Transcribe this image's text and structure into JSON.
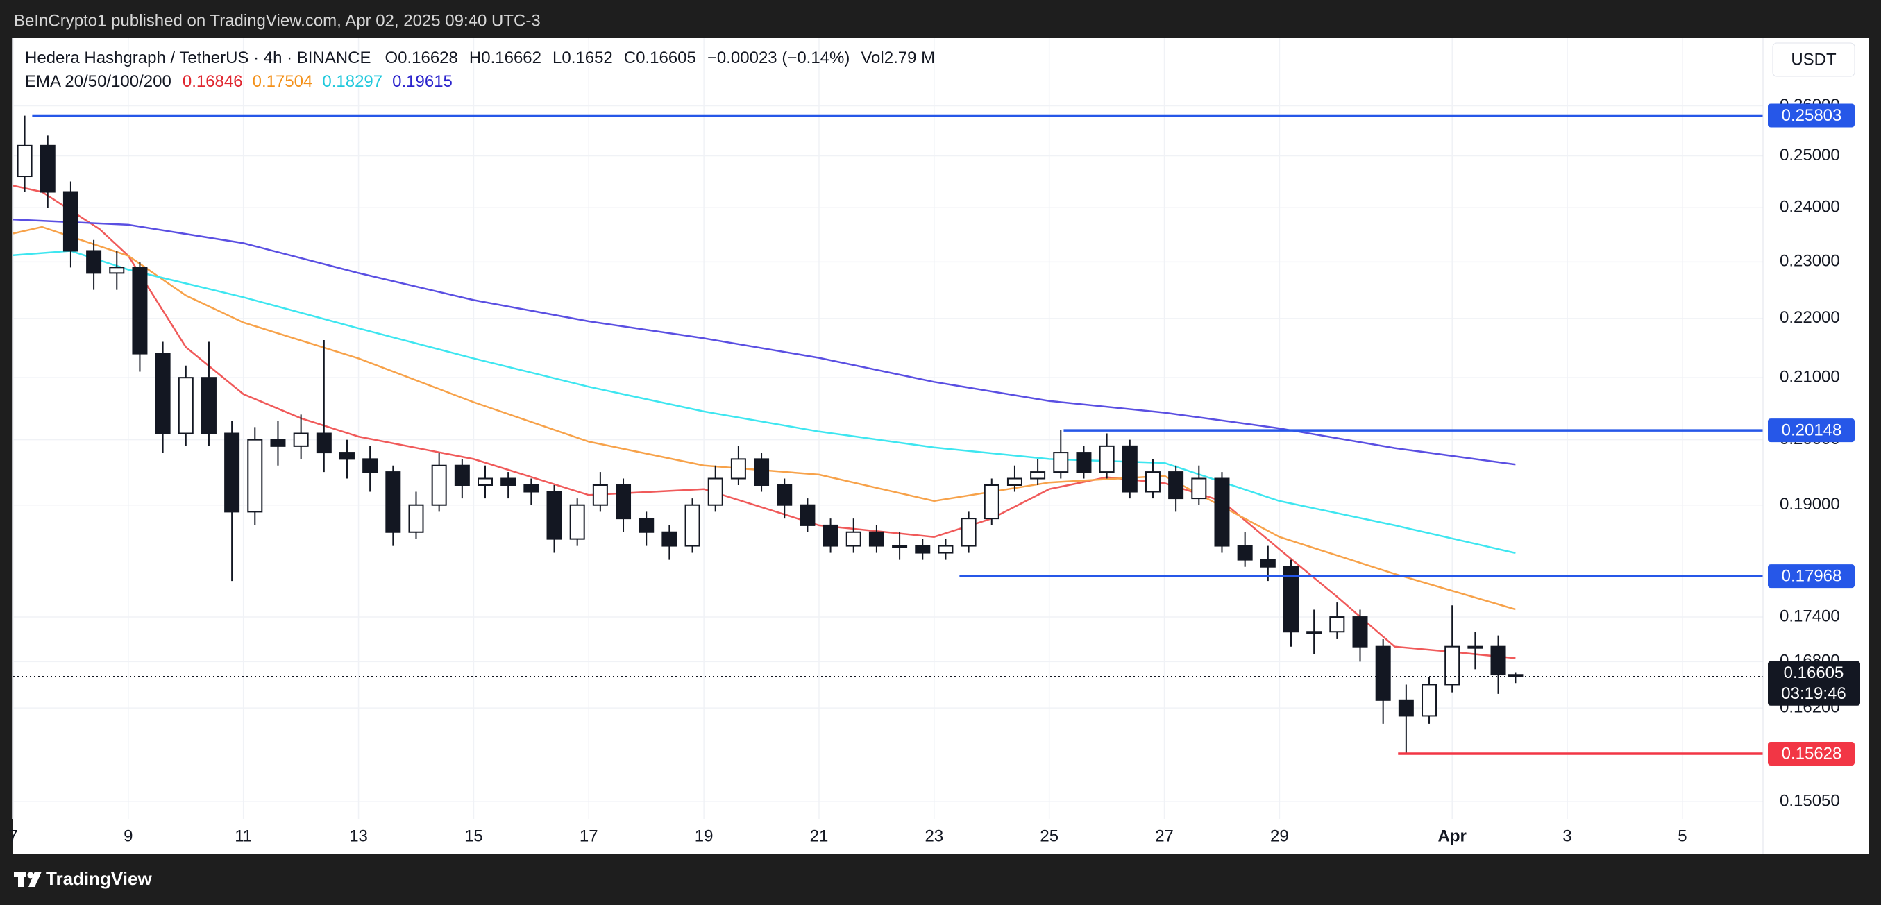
{
  "header": {
    "published": "BeInCrypto1 published on TradingView.com, Apr 02, 2025 09:40 UTC-3",
    "brand": "TradingView"
  },
  "chart_data": {
    "type": "candlestick",
    "symbol": "Hedera Hashgraph / TetherUS · 4h · BINANCE",
    "ohlc_labels": [
      "O",
      "H",
      "L",
      "C"
    ],
    "change": "−0.00023 (−0.14%)",
    "volume": "Vol2.79 M",
    "currency": "USDT",
    "ema_label": "EMA 20/50/100/200",
    "countdown": "03:19:46",
    "log_scale": true,
    "grid": true,
    "up_color": "#ffffff",
    "down_color": "#131722",
    "wick_color": "#131722",
    "x": [
      7.2,
      7.6,
      8.0,
      8.4,
      8.8,
      9.2,
      9.6,
      10.0,
      10.4,
      10.8,
      11.2,
      11.6,
      12.0,
      12.4,
      12.8,
      13.2,
      13.6,
      14.0,
      14.4,
      14.8,
      15.2,
      15.6,
      16.0,
      16.4,
      16.8,
      17.2,
      17.6,
      18.0,
      18.4,
      18.8,
      19.2,
      19.6,
      20.0,
      20.4,
      20.8,
      21.2,
      21.6,
      22.0,
      22.4,
      22.8,
      23.2,
      23.6,
      24.0,
      24.4,
      24.8,
      25.2,
      25.6,
      26.0,
      26.4,
      26.8,
      27.2,
      27.6,
      28.0,
      28.4,
      28.8,
      29.2,
      29.6,
      30.0,
      30.4,
      30.8,
      31.2,
      31.6,
      32.0,
      32.4,
      32.8,
      33.1
    ],
    "open": [
      0.246,
      0.252,
      0.243,
      0.232,
      0.228,
      0.229,
      0.214,
      0.201,
      0.21,
      0.201,
      0.189,
      0.2,
      0.199,
      0.201,
      0.198,
      0.197,
      0.195,
      0.186,
      0.19,
      0.196,
      0.193,
      0.194,
      0.193,
      0.192,
      0.185,
      0.19,
      0.193,
      0.188,
      0.186,
      0.184,
      0.19,
      0.194,
      0.197,
      0.193,
      0.19,
      0.187,
      0.184,
      0.186,
      0.184,
      0.184,
      0.183,
      0.184,
      0.188,
      0.193,
      0.194,
      0.195,
      0.198,
      0.195,
      0.199,
      0.192,
      0.195,
      0.191,
      0.194,
      0.184,
      0.182,
      0.181,
      0.172,
      0.172,
      0.174,
      0.17,
      0.163,
      0.161,
      0.165,
      0.17,
      0.17,
      0.16628
    ],
    "high": [
      0.258,
      0.254,
      0.245,
      0.234,
      0.232,
      0.23,
      0.216,
      0.212,
      0.216,
      0.203,
      0.202,
      0.203,
      0.204,
      0.2163,
      0.2,
      0.199,
      0.196,
      0.192,
      0.198,
      0.197,
      0.196,
      0.195,
      0.194,
      0.193,
      0.191,
      0.195,
      0.194,
      0.189,
      0.187,
      0.191,
      0.196,
      0.199,
      0.198,
      0.194,
      0.191,
      0.188,
      0.188,
      0.187,
      0.186,
      0.185,
      0.185,
      0.189,
      0.194,
      0.196,
      0.197,
      0.2015,
      0.199,
      0.201,
      0.2,
      0.197,
      0.196,
      0.196,
      0.195,
      0.186,
      0.184,
      0.182,
      0.175,
      0.176,
      0.175,
      0.171,
      0.165,
      0.166,
      0.1756,
      0.172,
      0.1715,
      0.16662
    ],
    "low": [
      0.243,
      0.24,
      0.229,
      0.225,
      0.225,
      0.211,
      0.198,
      0.199,
      0.199,
      0.179,
      0.187,
      0.196,
      0.197,
      0.195,
      0.194,
      0.192,
      0.184,
      0.185,
      0.189,
      0.191,
      0.191,
      0.191,
      0.19,
      0.183,
      0.184,
      0.189,
      0.186,
      0.184,
      0.182,
      0.183,
      0.189,
      0.193,
      0.192,
      0.188,
      0.186,
      0.183,
      0.183,
      0.183,
      0.182,
      0.182,
      0.182,
      0.183,
      0.187,
      0.192,
      0.193,
      0.194,
      0.194,
      0.194,
      0.191,
      0.191,
      0.189,
      0.19,
      0.183,
      0.181,
      0.179,
      0.17,
      0.169,
      0.171,
      0.168,
      0.16,
      0.15628,
      0.16,
      0.164,
      0.167,
      0.1638,
      0.1652
    ],
    "close": [
      0.252,
      0.243,
      0.232,
      0.228,
      0.229,
      0.214,
      0.201,
      0.21,
      0.201,
      0.189,
      0.2,
      0.199,
      0.201,
      0.198,
      0.197,
      0.195,
      0.186,
      0.19,
      0.196,
      0.193,
      0.194,
      0.193,
      0.192,
      0.185,
      0.19,
      0.193,
      0.188,
      0.186,
      0.184,
      0.19,
      0.194,
      0.197,
      0.193,
      0.19,
      0.187,
      0.184,
      0.186,
      0.184,
      0.184,
      0.183,
      0.184,
      0.188,
      0.193,
      0.194,
      0.195,
      0.198,
      0.195,
      0.199,
      0.192,
      0.195,
      0.191,
      0.194,
      0.184,
      0.182,
      0.181,
      0.172,
      0.172,
      0.174,
      0.17,
      0.163,
      0.161,
      0.165,
      0.17,
      0.17,
      0.1663,
      0.16605
    ],
    "series": [
      {
        "color": "#f05a5a",
        "legend_color": "#e0262f",
        "x": [
          7,
          7.5,
          8.5,
          9,
          10,
          11,
          12,
          13,
          15,
          17,
          19,
          21,
          23,
          24,
          25,
          26,
          27,
          28,
          29,
          30,
          31,
          32,
          33.1
        ],
        "values": [
          0.2442,
          0.243,
          0.236,
          0.2311,
          0.2151,
          0.2073,
          0.2034,
          0.2005,
          0.197,
          0.1915,
          0.1924,
          0.187,
          0.1853,
          0.188,
          0.1924,
          0.1942,
          0.1933,
          0.1906,
          0.1835,
          0.1768,
          0.17,
          0.1693,
          0.16846
        ]
      },
      {
        "color": "#f7a24a",
        "legend_color": "#f39019",
        "x": [
          7,
          7.5,
          9,
          10,
          11,
          13,
          15,
          17,
          19,
          21,
          23,
          25,
          27,
          29,
          31,
          33.1
        ],
        "values": [
          0.2352,
          0.2364,
          0.2311,
          0.224,
          0.2193,
          0.2132,
          0.206,
          0.1997,
          0.196,
          0.1946,
          0.1906,
          0.1934,
          0.1944,
          0.1853,
          0.18,
          0.17504
        ]
      },
      {
        "color": "#3ee6f0",
        "legend_color": "#1fc8dc",
        "x": [
          7,
          8,
          9,
          11,
          13,
          15,
          17,
          19,
          21,
          23,
          25,
          27,
          29,
          31,
          33.1
        ],
        "values": [
          0.2312,
          0.232,
          0.2286,
          0.2237,
          0.2183,
          0.2132,
          0.2085,
          0.2045,
          0.2013,
          0.1988,
          0.197,
          0.1964,
          0.1906,
          0.187,
          0.18297
        ]
      },
      {
        "color": "#5a4fe2",
        "legend_color": "#2a23cc",
        "x": [
          7,
          9,
          11,
          13,
          15,
          17,
          19,
          21,
          23,
          25,
          27,
          29,
          31,
          33.1
        ],
        "values": [
          0.2378,
          0.2368,
          0.2334,
          0.228,
          0.2232,
          0.2195,
          0.2166,
          0.2133,
          0.2093,
          0.2062,
          0.2043,
          0.2018,
          0.1987,
          0.19615
        ]
      }
    ],
    "levels": [
      {
        "value": 0.25803,
        "from": 7.33,
        "color": "#2657e8"
      },
      {
        "value": 0.20148,
        "from": 25.25,
        "color": "#2657e8"
      },
      {
        "value": 0.17968,
        "from": 23.44,
        "color": "#2657e8"
      },
      {
        "value": 0.15628,
        "from": 31.06,
        "color": "#f23645"
      }
    ],
    "xlim": [
      7,
      37.4
    ],
    "ylim": [
      0.1444,
      0.2742
    ],
    "xticks": [
      7,
      9,
      11,
      13,
      15,
      17,
      19,
      21,
      23,
      25,
      27,
      29,
      {
        "value": 32,
        "label": "Apr"
      },
      {
        "value": 34,
        "label": "3"
      },
      {
        "value": 36,
        "label": "5"
      }
    ],
    "yticks": [
      {
        "value": 0.26,
        "label": "0.26000"
      },
      {
        "value": 0.25,
        "label": "0.25000"
      },
      {
        "value": 0.24,
        "label": "0.24000"
      },
      {
        "value": 0.23,
        "label": "0.23000"
      },
      {
        "value": 0.22,
        "label": "0.22000"
      },
      {
        "value": 0.21,
        "label": "0.21000"
      },
      {
        "value": 0.2,
        "label": "0.20000"
      },
      {
        "value": 0.19,
        "label": "0.19000"
      },
      {
        "value": 0.174,
        "label": "0.17400"
      },
      {
        "value": 0.168,
        "label": "0.16800"
      },
      {
        "value": 0.162,
        "label": "0.16200"
      },
      {
        "value": 0.1505,
        "label": "0.15050"
      }
    ]
  }
}
